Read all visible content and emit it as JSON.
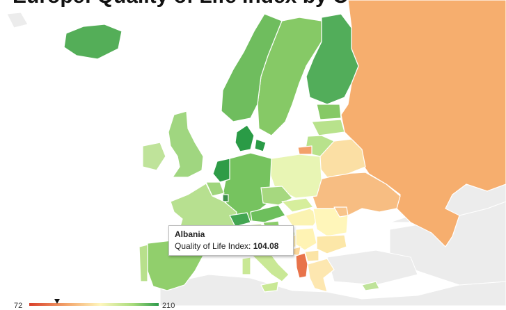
{
  "title": "Europe: Quality of Life Index by Country",
  "tooltip": {
    "country": "Albania",
    "metric_label": "Quality of Life Index:",
    "value": "104.08"
  },
  "legend": {
    "min": "72",
    "max": "210",
    "marker_value": 104.08,
    "gradient": [
      "#d9402b",
      "#f4a86e",
      "#fff7bd",
      "#a8dc7c",
      "#2c9a4b"
    ]
  },
  "colors": {
    "background_land": "#ededed",
    "border": "#ffffff"
  }
}
